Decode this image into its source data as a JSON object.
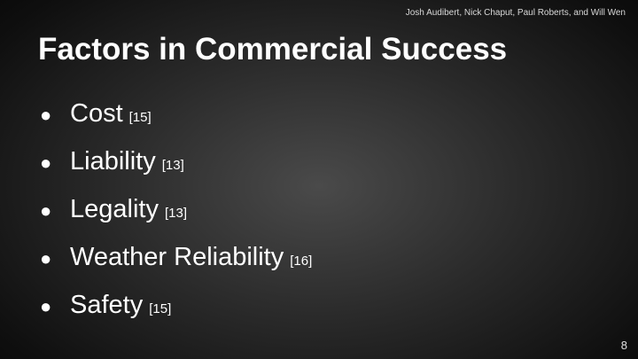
{
  "slide": {
    "authors": "Josh Audibert, Nick Chaput, Paul Roberts, and Will Wen",
    "title": "Factors in Commercial Success",
    "bullet_glyph": "●",
    "items": [
      {
        "label": "Cost",
        "ref": "[15]"
      },
      {
        "label": "Liability",
        "ref": "[13]"
      },
      {
        "label": "Legality",
        "ref": "[13]"
      },
      {
        "label": "Weather Reliability",
        "ref": "[16]"
      },
      {
        "label": "Safety",
        "ref": "[15]"
      }
    ],
    "page_number": "8"
  }
}
